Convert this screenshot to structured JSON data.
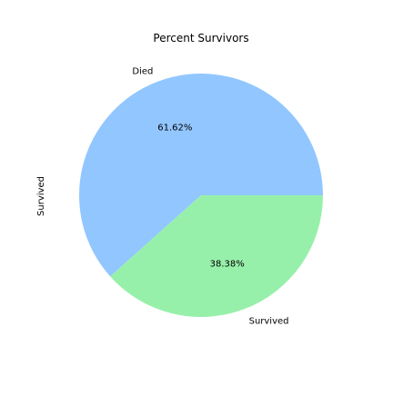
{
  "chart_data": {
    "type": "pie",
    "title": "Percent Survivors",
    "ylabel": "Survived",
    "xlabel": "",
    "categories": [
      "Died",
      "Survived"
    ],
    "values": [
      61.62,
      38.38
    ],
    "labels": [
      "61.62%",
      "38.38%"
    ],
    "colors": [
      "#92c6ff",
      "#97f0aa"
    ],
    "start_angle_deg": 0,
    "direction": "counterclockwise"
  }
}
